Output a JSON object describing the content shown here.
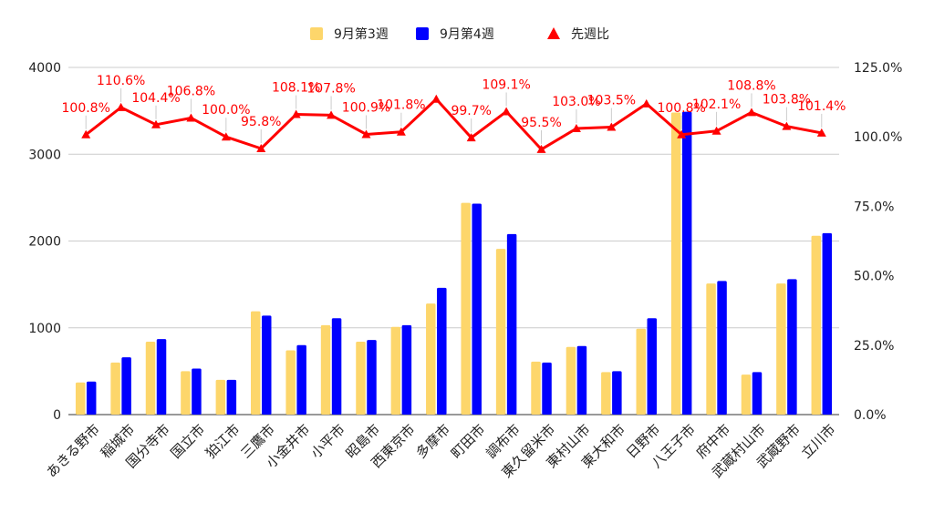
{
  "chart_data": {
    "type": "bar",
    "categories": [
      "あきる野市",
      "稲城市",
      "国分寺市",
      "国立市",
      "狛江市",
      "三鷹市",
      "小金井市",
      "小平市",
      "昭島市",
      "西東京市",
      "多摩市",
      "町田市",
      "調布市",
      "東久留米市",
      "東村山市",
      "東大和市",
      "日野市",
      "八王子市",
      "府中市",
      "武蔵村山市",
      "武蔵野市",
      "立川市"
    ],
    "series": [
      {
        "name": "9月第3週",
        "axis": "left",
        "kind": "bar",
        "color": "#fdd66b",
        "values": [
          370,
          600,
          840,
          500,
          400,
          1190,
          740,
          1030,
          840,
          1010,
          1280,
          2440,
          1910,
          610,
          780,
          490,
          990,
          3480,
          1510,
          460,
          1510,
          2060
        ]
      },
      {
        "name": "9月第4週",
        "axis": "left",
        "kind": "bar",
        "color": "#0000ff",
        "values": [
          380,
          660,
          870,
          530,
          400,
          1140,
          800,
          1110,
          860,
          1030,
          1460,
          2430,
          2080,
          600,
          790,
          500,
          1110,
          3490,
          1540,
          490,
          1560,
          2090
        ]
      },
      {
        "name": "先週比",
        "axis": "right",
        "kind": "line",
        "color": "#ff0000",
        "marker": "triangle",
        "values": [
          100.8,
          110.6,
          104.4,
          106.8,
          100.0,
          95.8,
          108.1,
          107.8,
          100.9,
          101.8,
          113.6,
          99.7,
          109.1,
          95.5,
          103.0,
          103.5,
          111.9,
          100.8,
          102.1,
          108.8,
          103.8,
          101.4
        ]
      }
    ],
    "data_labels": [
      "100.8%",
      "110.6%",
      "104.4%",
      "106.8%",
      "100.0%",
      "95.8%",
      "108.1%",
      "107.8%",
      "100.9%",
      "101.8%",
      "",
      "99.7%",
      "109.1%",
      "95.5%",
      "103.0%",
      "103.5%",
      "",
      "100.8%",
      "102.1%",
      "108.8%",
      "103.8%",
      "101.4%"
    ],
    "y_left": {
      "min": 0,
      "max": 4000,
      "ticks": [
        0,
        1000,
        2000,
        3000,
        4000
      ],
      "tick_labels": [
        "0",
        "1000",
        "2000",
        "3000",
        "4000"
      ]
    },
    "y_right": {
      "min": 0,
      "max": 125,
      "ticks": [
        0,
        25,
        50,
        75,
        100,
        125
      ],
      "tick_labels": [
        "0.0%",
        "25.0%",
        "50.0%",
        "75.0%",
        "100.0%",
        "125.0%"
      ]
    },
    "legend_position": "top-center",
    "grid": true
  }
}
